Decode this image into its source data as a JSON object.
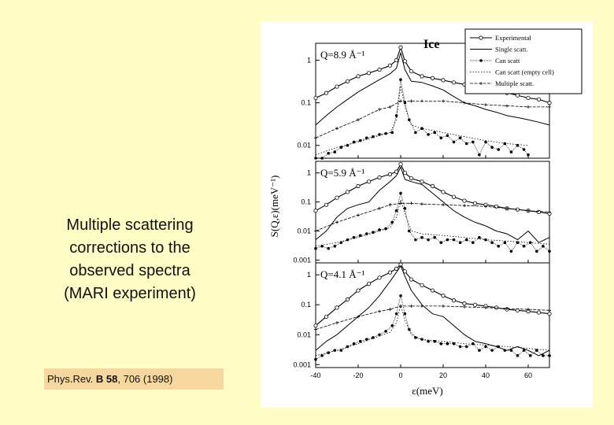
{
  "caption": {
    "lines": [
      "Multiple scattering",
      "corrections to the",
      "observed spectra",
      "(MARI experiment)"
    ]
  },
  "reference": {
    "prefix": "Phys.Rev. ",
    "volume": "B 58",
    "rest": ", 706 (1998)"
  },
  "chart_data": {
    "type": "line",
    "title": "Ice",
    "xlabel": "ε(meV)",
    "ylabel": "S(Q,ε)(meV⁻¹)",
    "xlim": [
      -40,
      70
    ],
    "x_ticks": [
      "-40",
      "-20",
      "0",
      "20",
      "40",
      "60"
    ],
    "yscale": "log",
    "legend": [
      "Experimental",
      "Single scatt.",
      "Can scatt",
      "Can scatt (empty cell)",
      "Multiple scatt."
    ],
    "legend_position": "top-right",
    "panels": [
      {
        "label": "Q=8.9 Å⁻¹",
        "ylim": [
          0.005,
          2.5
        ],
        "y_ticks": [
          "1",
          "0.1",
          "0.01"
        ],
        "y_tick_values": [
          1,
          0.1,
          0.01
        ],
        "series": [
          {
            "name": "Experimental",
            "x": [
              -40,
              -35,
              -30,
              -25,
              -20,
              -15,
              -10,
              -5,
              -2,
              0,
              2,
              5,
              10,
              15,
              20,
              25,
              30,
              35,
              40,
              45,
              50,
              55,
              60,
              65,
              70
            ],
            "y": [
              0.13,
              0.17,
              0.24,
              0.32,
              0.42,
              0.5,
              0.6,
              0.75,
              1.0,
              2.0,
              0.95,
              0.55,
              0.42,
              0.38,
              0.34,
              0.3,
              0.27,
              0.24,
              0.21,
              0.19,
              0.17,
              0.15,
              0.13,
              0.12,
              0.1
            ]
          },
          {
            "name": "Single scatt.",
            "x": [
              -40,
              -35,
              -30,
              -25,
              -20,
              -15,
              -10,
              -5,
              -2,
              0,
              2,
              5,
              10,
              15,
              20,
              25,
              30,
              35,
              40,
              45,
              50,
              55,
              60,
              65,
              70
            ],
            "y": [
              0.03,
              0.05,
              0.08,
              0.12,
              0.18,
              0.25,
              0.35,
              0.48,
              0.65,
              1.5,
              0.6,
              0.32,
              0.3,
              0.25,
              0.2,
              0.14,
              0.1,
              0.085,
              0.07,
              0.06,
              0.05,
              0.045,
              0.04,
              0.035,
              0.03
            ]
          },
          {
            "name": "Can scatt",
            "x": [
              -40,
              -37,
              -34,
              -31,
              -28,
              -25,
              -22,
              -19,
              -16,
              -13,
              -10,
              -7,
              -4,
              -2,
              0,
              2,
              4,
              7,
              10,
              13,
              16,
              19,
              22,
              25,
              28,
              31,
              34,
              37,
              40,
              43,
              46,
              49,
              52,
              55,
              58,
              60
            ],
            "y": [
              0.004,
              0.005,
              0.0065,
              0.007,
              0.009,
              0.01,
              0.012,
              0.013,
              0.015,
              0.016,
              0.018,
              0.019,
              0.02,
              0.05,
              0.35,
              0.1,
              0.04,
              0.02,
              0.025,
              0.018,
              0.02,
              0.015,
              0.017,
              0.012,
              0.015,
              0.011,
              0.012,
              0.006,
              0.012,
              0.009,
              0.008,
              0.011,
              0.007,
              0.01,
              0.008,
              0.006
            ]
          },
          {
            "name": "Can scatt (empty cell)",
            "x": [
              -40,
              -30,
              -20,
              -10,
              -5,
              -2,
              0,
              2,
              5,
              10,
              20,
              30,
              40,
              50,
              60
            ],
            "y": [
              0.006,
              0.009,
              0.012,
              0.017,
              0.02,
              0.04,
              0.25,
              0.08,
              0.03,
              0.025,
              0.02,
              0.016,
              0.013,
              0.011,
              0.01
            ]
          },
          {
            "name": "Multiple scatt.",
            "x": [
              -40,
              -30,
              -20,
              -10,
              -5,
              0,
              5,
              10,
              20,
              30,
              40,
              50,
              60,
              70
            ],
            "y": [
              0.015,
              0.025,
              0.04,
              0.07,
              0.08,
              0.11,
              0.11,
              0.11,
              0.11,
              0.1,
              0.09,
              0.085,
              0.08,
              0.08
            ]
          }
        ]
      },
      {
        "label": "Q=5.9 Å⁻¹",
        "ylim": [
          0.0008,
          2.5
        ],
        "y_ticks": [
          "1",
          "0.1",
          "0.01",
          "0.001"
        ],
        "y_tick_values": [
          1,
          0.1,
          0.01,
          0.001
        ],
        "series": [
          {
            "name": "Experimental",
            "x": [
              -40,
              -35,
              -30,
              -25,
              -20,
              -15,
              -10,
              -5,
              -2,
              0,
              2,
              5,
              10,
              15,
              20,
              25,
              30,
              35,
              40,
              45,
              50,
              55,
              60,
              65,
              70
            ],
            "y": [
              0.05,
              0.08,
              0.14,
              0.22,
              0.35,
              0.5,
              0.7,
              0.9,
              1.1,
              2.0,
              1.0,
              0.65,
              0.5,
              0.35,
              0.22,
              0.15,
              0.11,
              0.09,
              0.08,
              0.07,
              0.06,
              0.055,
              0.05,
              0.045,
              0.04
            ]
          },
          {
            "name": "Single scatt.",
            "x": [
              -40,
              -35,
              -30,
              -25,
              -20,
              -15,
              -10,
              -5,
              -2,
              0,
              2,
              5,
              10,
              15,
              20,
              25,
              30,
              35,
              40,
              45,
              50,
              55,
              60,
              65,
              70
            ],
            "y": [
              0.005,
              0.01,
              0.03,
              0.06,
              0.08,
              0.1,
              0.25,
              0.5,
              0.8,
              1.6,
              0.6,
              0.5,
              0.4,
              0.2,
              0.1,
              0.05,
              0.03,
              0.02,
              0.015,
              0.01,
              0.008,
              0.005,
              0.01,
              0.004,
              0.006
            ]
          },
          {
            "name": "Can scatt",
            "x": [
              -40,
              -37,
              -34,
              -31,
              -28,
              -25,
              -22,
              -19,
              -16,
              -13,
              -10,
              -7,
              -4,
              -2,
              0,
              2,
              4,
              7,
              10,
              13,
              16,
              19,
              22,
              25,
              28,
              31,
              34,
              37,
              40,
              43,
              46,
              49,
              52,
              55,
              58,
              61,
              64,
              67,
              70
            ],
            "y": [
              0.0025,
              0.003,
              0.0025,
              0.003,
              0.004,
              0.005,
              0.006,
              0.007,
              0.008,
              0.009,
              0.011,
              0.012,
              0.02,
              0.05,
              0.2,
              0.06,
              0.01,
              0.005,
              0.006,
              0.005,
              0.006,
              0.004,
              0.005,
              0.005,
              0.004,
              0.005,
              0.004,
              0.006,
              0.005,
              0.004,
              0.003,
              0.004,
              0.002,
              0.004,
              0.003,
              0.004,
              0.002,
              0.003,
              0.002
            ]
          },
          {
            "name": "Can scatt (empty cell)",
            "x": [
              -40,
              -30,
              -20,
              -10,
              -5,
              -2,
              0,
              2,
              5,
              10,
              20,
              30,
              40,
              50,
              60,
              70
            ],
            "y": [
              0.003,
              0.004,
              0.006,
              0.01,
              0.013,
              0.03,
              0.12,
              0.04,
              0.01,
              0.008,
              0.007,
              0.006,
              0.005,
              0.0045,
              0.004,
              0.0035
            ]
          },
          {
            "name": "Multiple scatt.",
            "x": [
              -40,
              -30,
              -20,
              -10,
              -5,
              0,
              5,
              10,
              20,
              30,
              40,
              50,
              60,
              70
            ],
            "y": [
              0.01,
              0.02,
              0.035,
              0.06,
              0.08,
              0.09,
              0.09,
              0.085,
              0.08,
              0.075,
              0.07,
              0.06,
              0.05,
              0.045
            ]
          }
        ]
      },
      {
        "label": "Q=4.1 Å⁻¹",
        "ylim": [
          0.0008,
          2.5
        ],
        "y_ticks": [
          "1",
          "0.1",
          "0.01",
          "0.001"
        ],
        "y_tick_values": [
          1,
          0.1,
          0.01,
          0.001
        ],
        "series": [
          {
            "name": "Experimental",
            "x": [
              -40,
              -35,
              -30,
              -25,
              -20,
              -15,
              -10,
              -5,
              -2,
              0,
              2,
              5,
              10,
              15,
              20,
              25,
              30,
              35,
              40,
              45,
              50,
              55,
              60,
              65,
              70
            ],
            "y": [
              0.02,
              0.04,
              0.08,
              0.15,
              0.3,
              0.5,
              0.8,
              1.2,
              1.6,
              2.2,
              1.3,
              0.7,
              0.45,
              0.3,
              0.2,
              0.14,
              0.11,
              0.1,
              0.09,
              0.08,
              0.07,
              0.065,
              0.06,
              0.055,
              0.05
            ]
          },
          {
            "name": "Single scatt.",
            "x": [
              -40,
              -35,
              -30,
              -25,
              -20,
              -15,
              -10,
              -5,
              -2,
              0,
              2,
              5,
              10,
              15,
              20,
              25,
              30,
              35,
              40,
              45,
              50,
              55,
              60,
              65,
              70
            ],
            "y": [
              0.003,
              0.006,
              0.01,
              0.02,
              0.04,
              0.08,
              0.2,
              0.6,
              1.2,
              2.0,
              0.9,
              0.3,
              0.1,
              0.05,
              0.04,
              0.02,
              0.01,
              0.006,
              0.005,
              0.004,
              0.003,
              0.004,
              0.003,
              0.002,
              0.003
            ]
          },
          {
            "name": "Can scatt",
            "x": [
              -40,
              -37,
              -34,
              -31,
              -28,
              -25,
              -22,
              -19,
              -16,
              -13,
              -10,
              -7,
              -4,
              -2,
              0,
              2,
              4,
              7,
              10,
              13,
              16,
              19,
              22,
              25,
              28,
              31,
              34,
              37,
              40,
              43,
              46,
              49,
              52,
              55,
              58,
              61,
              64,
              67,
              70
            ],
            "y": [
              0.0015,
              0.002,
              0.0025,
              0.003,
              0.003,
              0.004,
              0.005,
              0.006,
              0.007,
              0.008,
              0.01,
              0.013,
              0.02,
              0.05,
              0.2,
              0.05,
              0.015,
              0.008,
              0.007,
              0.006,
              0.006,
              0.005,
              0.005,
              0.005,
              0.004,
              0.004,
              0.005,
              0.003,
              0.004,
              0.003,
              0.004,
              0.003,
              0.003,
              0.002,
              0.003,
              0.002,
              0.003,
              0.002,
              0.002
            ]
          },
          {
            "name": "Can scatt (empty cell)",
            "x": [
              -40,
              -30,
              -20,
              -10,
              -5,
              -2,
              0,
              2,
              5,
              10,
              20,
              30,
              40,
              50,
              60,
              70
            ],
            "y": [
              0.002,
              0.003,
              0.005,
              0.009,
              0.012,
              0.025,
              0.1,
              0.03,
              0.01,
              0.007,
              0.006,
              0.005,
              0.0045,
              0.004,
              0.0035,
              0.003
            ]
          },
          {
            "name": "Multiple scatt.",
            "x": [
              -40,
              -30,
              -20,
              -10,
              -5,
              0,
              5,
              10,
              20,
              30,
              40,
              50,
              60,
              70
            ],
            "y": [
              0.015,
              0.025,
              0.04,
              0.06,
              0.07,
              0.09,
              0.09,
              0.09,
              0.09,
              0.085,
              0.08,
              0.075,
              0.07,
              0.065
            ]
          }
        ]
      }
    ]
  }
}
